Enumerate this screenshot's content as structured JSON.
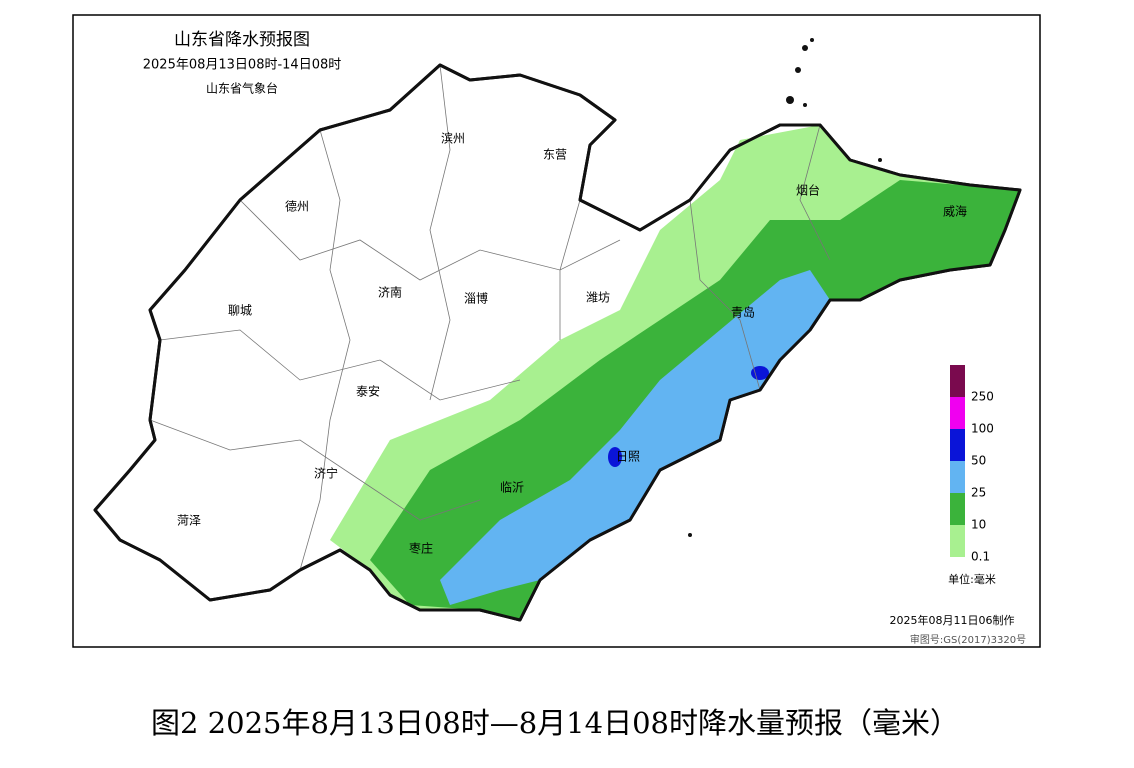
{
  "map": {
    "title": "山东省降水预报图",
    "subtitle": "2025年08月13日08时-14日08时",
    "issuer": "山东省气象台",
    "cities": [
      "滨州",
      "东营",
      "德州",
      "烟台",
      "威海",
      "济南",
      "淄博",
      "潍坊",
      "聊城",
      "青岛",
      "泰安",
      "日照",
      "济宁",
      "临沂",
      "菏泽",
      "枣庄"
    ],
    "legend": {
      "items": [
        {
          "label": "250",
          "color": "#7a0a4e"
        },
        {
          "label": "100",
          "color": "#f000f0"
        },
        {
          "label": "50",
          "color": "#0a14d8"
        },
        {
          "label": "25",
          "color": "#62b4f2"
        },
        {
          "label": "10",
          "color": "#3bb33b"
        },
        {
          "label": "0.1",
          "color": "#a8f090"
        }
      ],
      "unit": "单位:毫米"
    },
    "made": "2025年08月11日06制作",
    "approval": "审图号:GS(2017)3320号"
  },
  "caption": "图2 2025年8月13日08时—8月14日08时降水量预报（毫米）"
}
